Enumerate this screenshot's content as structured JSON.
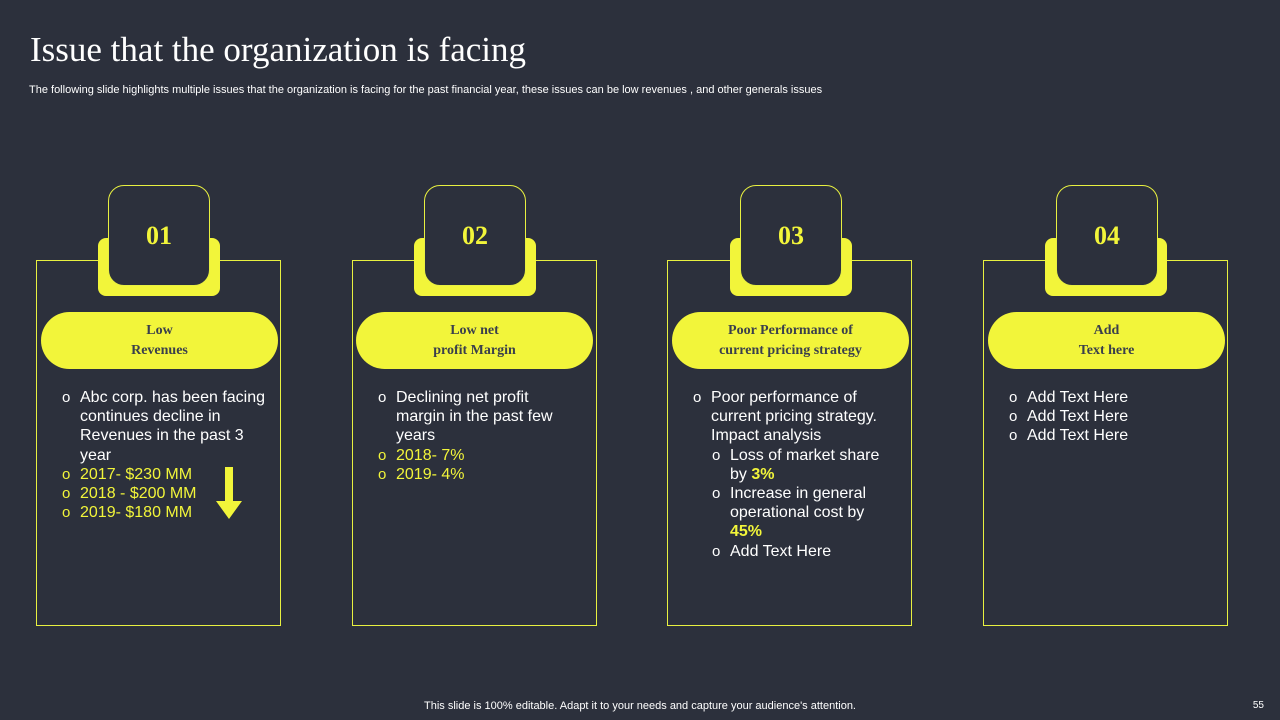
{
  "slide": {
    "title": "Issue that the organization  is facing",
    "subtitle": "The following slide highlights multiple issues that the organization is facing for the past financial year, these issues can be low revenues , and other generals issues",
    "footer": "This slide is 100% editable. Adapt it to your needs and capture your audience's attention.",
    "page_number": "55"
  },
  "colors": {
    "background": "#2c303c",
    "accent": "#f2f53a"
  },
  "cards": [
    {
      "number": "01",
      "heading": [
        "Low",
        "Revenues"
      ],
      "items": [
        "Abc corp. has been facing continues decline in Revenues  in the past 3 year",
        "2017- $230 MM",
        "2018 - $200 MM",
        "2019- $180 MM"
      ],
      "icon": "arrow-down-icon"
    },
    {
      "number": "02",
      "heading": [
        "Low net",
        "profit  Margin"
      ],
      "items": [
        "Declining net profit margin in the past few years",
        "2018- 7%",
        "2019- 4%"
      ]
    },
    {
      "number": "03",
      "heading": [
        "Poor Performance  of",
        "current  pricing  strategy"
      ],
      "items": [
        "Poor performance of current pricing strategy. Impact analysis",
        "Loss of market share by",
        "3%",
        "Increase  in general operational cost by",
        "45%",
        "Add Text Here"
      ]
    },
    {
      "number": "04",
      "heading": [
        "Add",
        "Text here"
      ],
      "items": [
        "Add Text Here",
        "Add Text Here",
        "Add Text Here"
      ]
    }
  ]
}
